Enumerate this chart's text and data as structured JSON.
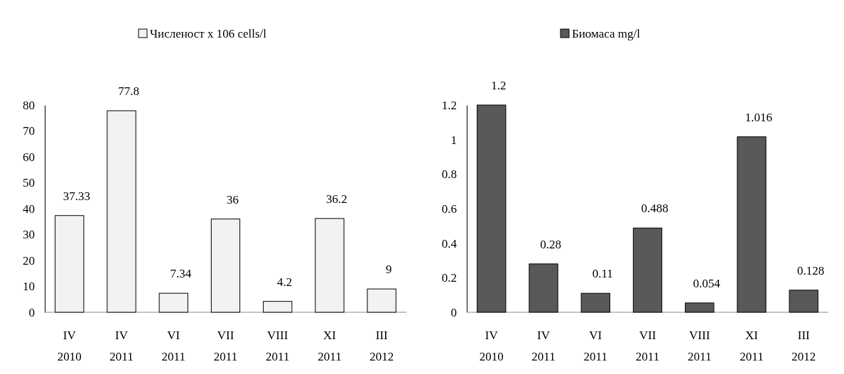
{
  "chart_data": [
    {
      "type": "bar",
      "categories": [
        "IV 2010",
        "IV 2011",
        "VI 2011",
        "VII 2011",
        "VIII 2011",
        "XI 2011",
        "III 2012"
      ],
      "series": [
        {
          "name": "Численост x 106 cells/l",
          "color": "#f2f2f2",
          "values": [
            37.33,
            77.8,
            7.34,
            36,
            4.2,
            36.2,
            9
          ]
        }
      ],
      "ylim": [
        0,
        80
      ],
      "yticks": [
        0,
        10,
        20,
        30,
        40,
        50,
        60,
        70,
        80
      ],
      "data_labels": true,
      "legend": "top",
      "grid": false
    },
    {
      "type": "bar",
      "categories": [
        "IV 2010",
        "IV 2011",
        "VI 2011",
        "VII 2011",
        "VIII 2011",
        "XI 2011",
        "III 2012"
      ],
      "series": [
        {
          "name": "Биомаса mg/l",
          "color": "#595959",
          "values": [
            1.2,
            0.28,
            0.11,
            0.488,
            0.054,
            1.016,
            0.128
          ]
        }
      ],
      "ylim": [
        0,
        1.2
      ],
      "yticks": [
        0,
        0.2,
        0.4,
        0.6,
        0.8,
        1,
        1.2
      ],
      "data_labels": true,
      "legend": "top",
      "grid": false
    }
  ]
}
